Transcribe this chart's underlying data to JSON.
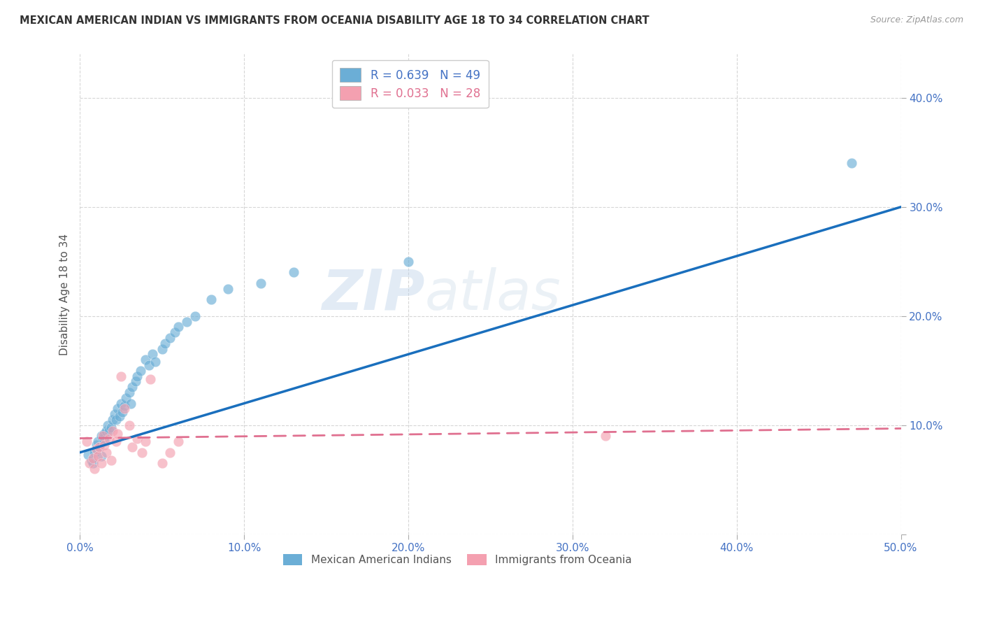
{
  "title": "MEXICAN AMERICAN INDIAN VS IMMIGRANTS FROM OCEANIA DISABILITY AGE 18 TO 34 CORRELATION CHART",
  "source": "Source: ZipAtlas.com",
  "xlabel": "",
  "ylabel": "Disability Age 18 to 34",
  "xlim": [
    0.0,
    0.5
  ],
  "ylim": [
    0.0,
    0.44
  ],
  "xticks": [
    0.0,
    0.1,
    0.2,
    0.3,
    0.4,
    0.5
  ],
  "yticks": [
    0.0,
    0.1,
    0.2,
    0.3,
    0.4
  ],
  "xtick_labels": [
    "0.0%",
    "10.0%",
    "20.0%",
    "30.0%",
    "40.0%",
    "50.0%"
  ],
  "ytick_labels": [
    "",
    "10.0%",
    "20.0%",
    "30.0%",
    "40.0%"
  ],
  "blue_R": 0.639,
  "blue_N": 49,
  "pink_R": 0.033,
  "pink_N": 28,
  "blue_color": "#6baed6",
  "pink_color": "#f4a0b0",
  "blue_line_color": "#1a6fbd",
  "pink_line_color": "#e07090",
  "watermark_zip": "ZIP",
  "watermark_atlas": "atlas",
  "legend_blue_label": "Mexican American Indians",
  "legend_pink_label": "Immigrants from Oceania",
  "blue_scatter_x": [
    0.005,
    0.007,
    0.008,
    0.009,
    0.01,
    0.01,
    0.011,
    0.012,
    0.013,
    0.013,
    0.014,
    0.015,
    0.015,
    0.016,
    0.017,
    0.018,
    0.019,
    0.02,
    0.021,
    0.022,
    0.023,
    0.024,
    0.025,
    0.026,
    0.027,
    0.028,
    0.03,
    0.031,
    0.032,
    0.034,
    0.035,
    0.037,
    0.04,
    0.042,
    0.044,
    0.046,
    0.05,
    0.052,
    0.055,
    0.058,
    0.06,
    0.065,
    0.07,
    0.08,
    0.09,
    0.11,
    0.13,
    0.2,
    0.47
  ],
  "blue_scatter_y": [
    0.073,
    0.068,
    0.065,
    0.075,
    0.082,
    0.078,
    0.085,
    0.08,
    0.09,
    0.072,
    0.088,
    0.092,
    0.086,
    0.095,
    0.1,
    0.095,
    0.098,
    0.105,
    0.11,
    0.105,
    0.115,
    0.108,
    0.12,
    0.112,
    0.118,
    0.125,
    0.13,
    0.12,
    0.135,
    0.14,
    0.145,
    0.15,
    0.16,
    0.155,
    0.165,
    0.158,
    0.17,
    0.175,
    0.18,
    0.185,
    0.19,
    0.195,
    0.2,
    0.215,
    0.225,
    0.23,
    0.24,
    0.25,
    0.34
  ],
  "pink_scatter_x": [
    0.004,
    0.006,
    0.008,
    0.009,
    0.01,
    0.011,
    0.012,
    0.013,
    0.014,
    0.015,
    0.016,
    0.018,
    0.019,
    0.02,
    0.022,
    0.023,
    0.025,
    0.027,
    0.03,
    0.032,
    0.035,
    0.038,
    0.04,
    0.043,
    0.05,
    0.055,
    0.06,
    0.32
  ],
  "pink_scatter_y": [
    0.085,
    0.065,
    0.07,
    0.06,
    0.078,
    0.072,
    0.08,
    0.065,
    0.09,
    0.082,
    0.075,
    0.088,
    0.068,
    0.095,
    0.085,
    0.092,
    0.145,
    0.115,
    0.1,
    0.08,
    0.088,
    0.075,
    0.085,
    0.142,
    0.065,
    0.075,
    0.085,
    0.09
  ],
  "blue_line_x0": 0.0,
  "blue_line_y0": 0.075,
  "blue_line_x1": 0.5,
  "blue_line_y1": 0.3,
  "pink_line_x0": 0.0,
  "pink_line_y0": 0.088,
  "pink_line_x1": 0.5,
  "pink_line_y1": 0.097,
  "background_color": "#ffffff",
  "grid_color": "#cccccc"
}
